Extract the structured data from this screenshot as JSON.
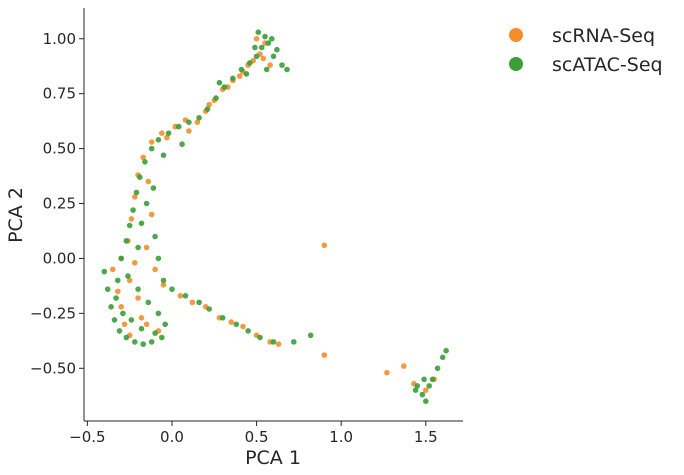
{
  "chart_data": {
    "type": "scatter",
    "xlabel": "PCA 1",
    "ylabel": "PCA 2",
    "xlim": [
      -0.52,
      1.72
    ],
    "ylim": [
      -0.74,
      1.14
    ],
    "x_ticks": [
      -0.5,
      0.0,
      0.5,
      1.0,
      1.5
    ],
    "x_tick_labels": [
      "−0.5",
      "0.0",
      "0.5",
      "1.0",
      "1.5"
    ],
    "y_ticks": [
      -0.5,
      -0.25,
      0.0,
      0.25,
      0.5,
      0.75,
      1.0
    ],
    "y_tick_labels": [
      "−0.50",
      "−0.25",
      "0.00",
      "0.25",
      "0.50",
      "0.75",
      "1.00"
    ],
    "grid": false,
    "legend_position": "outside-top-right",
    "series": [
      {
        "name": "scRNA-Seq",
        "color": "#f28e2b",
        "points": [
          [
            -0.35,
            -0.05
          ],
          [
            -0.32,
            -0.15
          ],
          [
            -0.3,
            -0.22
          ],
          [
            -0.28,
            -0.3
          ],
          [
            -0.25,
            -0.1
          ],
          [
            -0.22,
            -0.02
          ],
          [
            -0.2,
            -0.18
          ],
          [
            -0.18,
            -0.27
          ],
          [
            -0.26,
            0.08
          ],
          [
            -0.24,
            0.18
          ],
          [
            -0.22,
            0.28
          ],
          [
            -0.2,
            0.38
          ],
          [
            -0.17,
            0.46
          ],
          [
            -0.12,
            0.53
          ],
          [
            -0.06,
            0.57
          ],
          [
            0.02,
            0.6
          ],
          [
            0.08,
            0.63
          ],
          [
            0.15,
            0.62
          ],
          [
            0.2,
            0.67
          ],
          [
            0.25,
            0.72
          ],
          [
            0.3,
            0.77
          ],
          [
            0.36,
            0.81
          ],
          [
            0.42,
            0.85
          ],
          [
            0.48,
            0.9
          ],
          [
            0.52,
            0.93
          ],
          [
            0.55,
            0.98
          ],
          [
            0.5,
            1.0
          ],
          [
            0.58,
            0.88
          ],
          [
            0.45,
            0.88
          ],
          [
            -0.15,
            0.05
          ],
          [
            -0.1,
            -0.05
          ],
          [
            -0.05,
            -0.12
          ],
          [
            0.05,
            -0.17
          ],
          [
            0.12,
            -0.2
          ],
          [
            0.2,
            -0.22
          ],
          [
            0.28,
            -0.27
          ],
          [
            0.35,
            -0.29
          ],
          [
            0.42,
            -0.31
          ],
          [
            0.5,
            -0.35
          ],
          [
            0.58,
            -0.38
          ],
          [
            0.63,
            -0.39
          ],
          [
            0.9,
            0.06
          ],
          [
            0.9,
            -0.44
          ],
          [
            1.27,
            -0.52
          ],
          [
            1.37,
            -0.49
          ],
          [
            1.43,
            -0.57
          ],
          [
            1.5,
            -0.6
          ],
          [
            1.55,
            -0.55
          ],
          [
            -0.3,
            0.0
          ],
          [
            -0.15,
            -0.3
          ],
          [
            -0.08,
            -0.33
          ],
          [
            -0.25,
            -0.35
          ],
          [
            -0.12,
            0.2
          ],
          [
            -0.14,
            0.35
          ],
          [
            0.1,
            0.58
          ],
          [
            -0.03,
            0.55
          ],
          [
            0.33,
            0.78
          ],
          [
            0.4,
            0.83
          ],
          [
            0.54,
            0.91
          ],
          [
            0.22,
            0.7
          ]
        ]
      },
      {
        "name": "scATAC-Seq",
        "color": "#3a9e3a",
        "points": [
          [
            -0.4,
            -0.06
          ],
          [
            -0.38,
            -0.14
          ],
          [
            -0.36,
            -0.22
          ],
          [
            -0.34,
            -0.28
          ],
          [
            -0.31,
            -0.33
          ],
          [
            -0.27,
            -0.36
          ],
          [
            -0.22,
            -0.38
          ],
          [
            -0.17,
            -0.39
          ],
          [
            -0.12,
            -0.38
          ],
          [
            -0.06,
            -0.36
          ],
          [
            -0.04,
            -0.3
          ],
          [
            -0.08,
            -0.25
          ],
          [
            -0.14,
            -0.2
          ],
          [
            -0.2,
            -0.14
          ],
          [
            -0.26,
            -0.08
          ],
          [
            -0.3,
            0.0
          ],
          [
            -0.27,
            0.08
          ],
          [
            -0.25,
            0.15
          ],
          [
            -0.23,
            0.22
          ],
          [
            -0.21,
            0.3
          ],
          [
            -0.19,
            0.37
          ],
          [
            -0.16,
            0.44
          ],
          [
            -0.12,
            0.5
          ],
          [
            -0.08,
            0.54
          ],
          [
            -0.02,
            0.57
          ],
          [
            0.04,
            0.6
          ],
          [
            0.1,
            0.62
          ],
          [
            0.16,
            0.64
          ],
          [
            0.21,
            0.68
          ],
          [
            0.26,
            0.73
          ],
          [
            0.31,
            0.78
          ],
          [
            0.36,
            0.82
          ],
          [
            0.41,
            0.86
          ],
          [
            0.46,
            0.89
          ],
          [
            0.5,
            0.92
          ],
          [
            0.53,
            0.96
          ],
          [
            0.55,
            1.01
          ],
          [
            0.51,
            1.03
          ],
          [
            0.57,
            0.98
          ],
          [
            0.6,
            0.92
          ],
          [
            0.65,
            0.88
          ],
          [
            0.68,
            0.86
          ],
          [
            0.62,
            0.95
          ],
          [
            0.56,
            0.86
          ],
          [
            -0.1,
            0.1
          ],
          [
            -0.08,
            0.0
          ],
          [
            -0.05,
            -0.1
          ],
          [
            0.0,
            -0.14
          ],
          [
            0.08,
            -0.17
          ],
          [
            0.16,
            -0.2
          ],
          [
            0.22,
            -0.23
          ],
          [
            0.3,
            -0.27
          ],
          [
            0.38,
            -0.3
          ],
          [
            0.45,
            -0.33
          ],
          [
            0.52,
            -0.36
          ],
          [
            0.6,
            -0.38
          ],
          [
            0.72,
            -0.38
          ],
          [
            0.82,
            -0.35
          ],
          [
            1.45,
            -0.58
          ],
          [
            1.48,
            -0.62
          ],
          [
            1.5,
            -0.65
          ],
          [
            1.52,
            -0.58
          ],
          [
            1.54,
            -0.55
          ],
          [
            1.57,
            -0.5
          ],
          [
            1.6,
            -0.45
          ],
          [
            1.62,
            -0.42
          ],
          [
            1.44,
            -0.6
          ],
          [
            1.49,
            -0.55
          ],
          [
            -0.33,
            -0.18
          ],
          [
            -0.29,
            -0.25
          ],
          [
            -0.18,
            -0.32
          ],
          [
            -0.1,
            -0.34
          ],
          [
            -0.24,
            -0.28
          ],
          [
            -0.32,
            -0.1
          ],
          [
            -0.2,
            0.05
          ],
          [
            -0.15,
            0.25
          ],
          [
            -0.18,
            0.16
          ],
          [
            -0.11,
            0.32
          ],
          [
            0.06,
            0.52
          ],
          [
            -0.05,
            0.47
          ],
          [
            0.28,
            0.8
          ],
          [
            0.44,
            0.84
          ],
          [
            0.49,
            0.96
          ],
          [
            0.59,
            1.0
          ]
        ]
      }
    ]
  }
}
